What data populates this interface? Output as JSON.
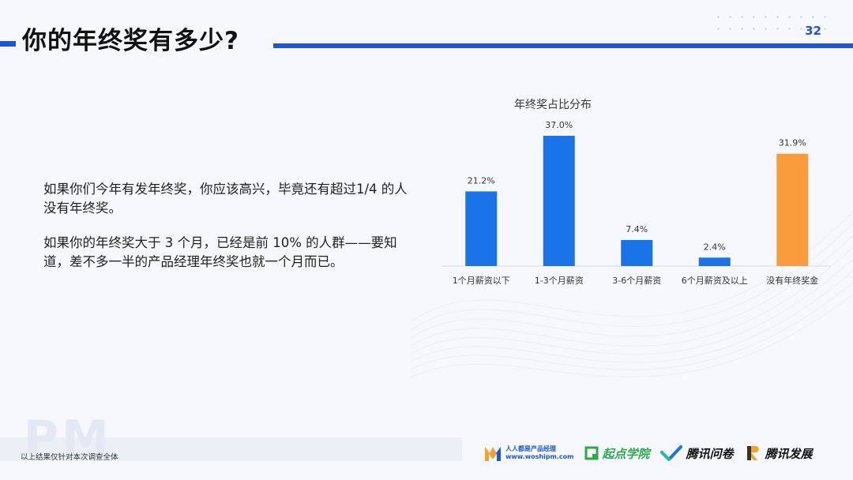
{
  "header": {
    "title": "你的年终奖有多少?",
    "page_number": "32"
  },
  "body": {
    "paragraph_1": "如果你们今年有发年终奖，你应该高兴，毕竟还有超过1/4 的人没有年终奖。",
    "paragraph_2": "如果你的年终奖大于 3 个月，已经是前 10% 的人群——要知道，差不多一半的产品经理年终奖也就一个月而已。"
  },
  "chart_data": {
    "type": "bar",
    "title": "年终奖占比分布",
    "categories": [
      "1个月薪资以下",
      "1-3个月薪资",
      "3-6个月薪资",
      "6个月薪资及以上",
      "没有年终奖金"
    ],
    "values": [
      21.2,
      37.0,
      7.4,
      2.4,
      31.9
    ],
    "data_labels": [
      "21.2%",
      "37.0%",
      "7.4%",
      "2.4%",
      "31.9%"
    ],
    "colors": [
      "#1a73e8",
      "#1a73e8",
      "#1a73e8",
      "#1a73e8",
      "#fb9c3c"
    ],
    "ylim": [
      0,
      37.0
    ],
    "grid": false,
    "legend": "none"
  },
  "footer": {
    "note": "以上结果仅针对本次调查全体",
    "watermark": "PM",
    "logos": {
      "woshipm_name": "人人都是产品经理",
      "woshipm_url": "www.woshipm.com",
      "qidian": "起点学院",
      "wenjuan": "腾讯问卷",
      "tencent_dev": "腾讯发展"
    }
  },
  "colors": {
    "accent": "#1a56db",
    "bar_blue": "#1a73e8",
    "bar_orange": "#fb9c3c",
    "background": "#f6f8fd"
  }
}
